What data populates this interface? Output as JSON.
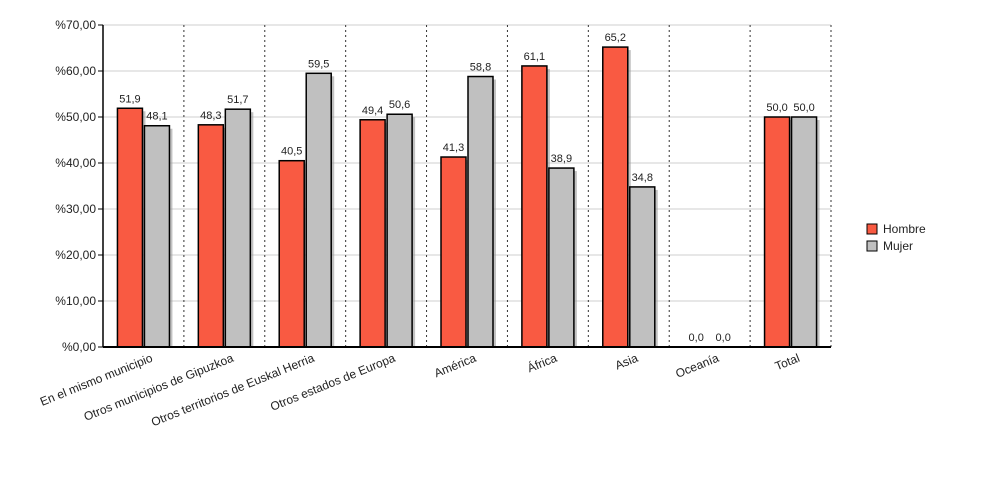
{
  "chart_data": {
    "type": "bar",
    "categories": [
      "En el mismo municipio",
      "Otros municipios de Gipuzkoa",
      "Otros territorios de Euskal Herria",
      "Otros estados de Europa",
      "América",
      "África",
      "Asia",
      "Oceanía",
      "Total"
    ],
    "series": [
      {
        "name": "Hombre",
        "color": "#f95a42",
        "values": [
          51.9,
          48.3,
          40.5,
          49.4,
          41.3,
          61.1,
          65.2,
          0.0,
          50.0
        ],
        "labels": [
          "51,9",
          "48,3",
          "40,5",
          "49,4",
          "41,3",
          "61,1",
          "65,2",
          "0,0",
          "50,0"
        ]
      },
      {
        "name": "Mujer",
        "color": "#c0c0c0",
        "values": [
          48.1,
          51.7,
          59.5,
          50.6,
          58.8,
          38.9,
          34.8,
          0.0,
          50.0
        ],
        "labels": [
          "48,1",
          "51,7",
          "59,5",
          "50,6",
          "58,8",
          "38,9",
          "34,8",
          "0,0",
          "50,0"
        ]
      }
    ],
    "yticks": [
      0,
      10,
      20,
      30,
      40,
      50,
      60,
      70
    ],
    "ytick_labels": [
      "%0,00",
      "%10,00",
      "%20,00",
      "%30,00",
      "%40,00",
      "%50,00",
      "%60,00",
      "%70,00"
    ],
    "ylim": [
      0,
      70
    ],
    "title": "",
    "xlabel": "",
    "ylabel": "",
    "grid": true,
    "legend_position": "right"
  }
}
